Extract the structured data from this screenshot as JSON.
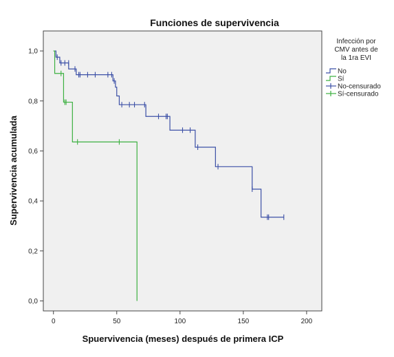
{
  "chart_data": {
    "type": "line",
    "subtype": "kaplan-meier step",
    "title": "Funciones de supervivencia",
    "xlabel": "Spuervivencia (meses) después de primera ICP",
    "ylabel": "Supervivencia acumulada",
    "xlim": [
      -8,
      212
    ],
    "ylim": [
      -0.04,
      1.08
    ],
    "xticks": [
      0,
      50,
      100,
      150,
      200
    ],
    "yticks": [
      0.0,
      0.2,
      0.4,
      0.6,
      0.8,
      1.0
    ],
    "ytick_labels": [
      "0,0",
      "0,2",
      "0,4",
      "0,6",
      "0,8",
      "1,0"
    ],
    "xtick_labels": [
      "0",
      "50",
      "100",
      "150",
      "200"
    ],
    "grid": false,
    "plot_background": "#f0f0f0",
    "legend": {
      "title": "Infección por CMV antes de la 1ra EVI",
      "title_lines": [
        "Infección por",
        "CMV antes de",
        "la 1ra EVI"
      ],
      "placement": "right",
      "entries": [
        {
          "label": "No",
          "color": "#3b4fa6",
          "kind": "step"
        },
        {
          "label": "Sí",
          "color": "#3cb040",
          "kind": "step"
        },
        {
          "label": "No-censurado",
          "color": "#3b4fa6",
          "kind": "cross"
        },
        {
          "label": "Sí-censurado",
          "color": "#3cb040",
          "kind": "cross"
        }
      ]
    },
    "series": [
      {
        "name": "No",
        "color": "#3b4fa6",
        "steps": [
          [
            0,
            1.0
          ],
          [
            2,
            0.975
          ],
          [
            5,
            0.952
          ],
          [
            12,
            0.928
          ],
          [
            18,
            0.905
          ],
          [
            47,
            0.88
          ],
          [
            49,
            0.855
          ],
          [
            50,
            0.82
          ],
          [
            52,
            0.785
          ],
          [
            73,
            0.738
          ],
          [
            92,
            0.683
          ],
          [
            112,
            0.615
          ],
          [
            128,
            0.537
          ],
          [
            157,
            0.447
          ],
          [
            164,
            0.335
          ],
          [
            182,
            0.335
          ]
        ],
        "censored": [
          [
            3,
            0.975
          ],
          [
            6,
            0.952
          ],
          [
            9,
            0.952
          ],
          [
            12,
            0.952
          ],
          [
            17,
            0.928
          ],
          [
            20,
            0.905
          ],
          [
            21,
            0.905
          ],
          [
            27,
            0.905
          ],
          [
            33,
            0.905
          ],
          [
            43,
            0.905
          ],
          [
            46,
            0.905
          ],
          [
            48,
            0.88
          ],
          [
            54,
            0.785
          ],
          [
            60,
            0.785
          ],
          [
            64,
            0.785
          ],
          [
            72,
            0.785
          ],
          [
            83,
            0.738
          ],
          [
            89,
            0.738
          ],
          [
            90,
            0.738
          ],
          [
            102,
            0.683
          ],
          [
            108,
            0.683
          ],
          [
            114,
            0.615
          ],
          [
            130,
            0.537
          ],
          [
            157,
            0.447
          ],
          [
            169,
            0.335
          ],
          [
            170,
            0.335
          ],
          [
            182,
            0.335
          ]
        ]
      },
      {
        "name": "Sí",
        "color": "#3cb040",
        "steps": [
          [
            0,
            1.0
          ],
          [
            1,
            0.91
          ],
          [
            8,
            0.795
          ],
          [
            15,
            0.636
          ],
          [
            66,
            0.0
          ]
        ],
        "censored": [
          [
            6,
            0.91
          ],
          [
            9,
            0.795
          ],
          [
            10,
            0.795
          ],
          [
            19,
            0.636
          ],
          [
            52,
            0.636
          ]
        ]
      }
    ]
  }
}
